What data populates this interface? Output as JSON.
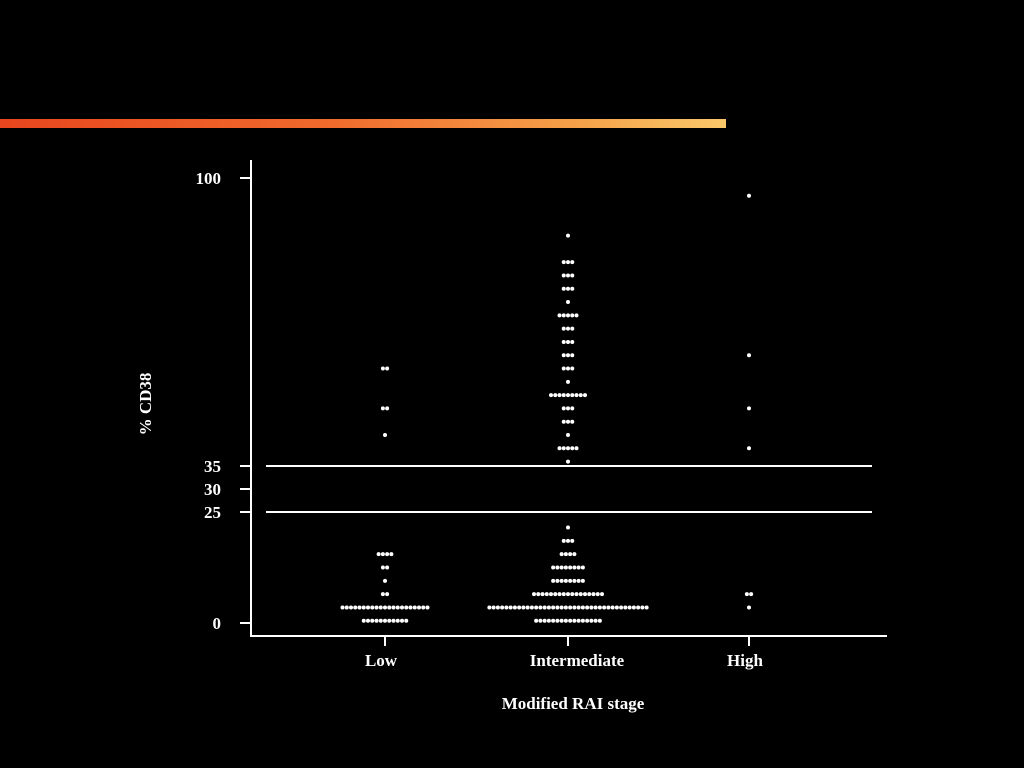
{
  "accent_color": "#f06a2c",
  "chart_data": {
    "type": "scatter",
    "subtype": "dot-plot",
    "xlabel": "Modified RAI stage",
    "ylabel": "% CD38",
    "categories": [
      "Low",
      "Intermediate",
      "High"
    ],
    "yticks": [
      0,
      25,
      30,
      35,
      100
    ],
    "ylim": [
      0,
      100
    ],
    "reference_lines": [
      25,
      35
    ],
    "grid": false,
    "point_color": "#ffffff",
    "series": [
      {
        "category": "Low",
        "values": [
          0.5,
          0.5,
          0.5,
          0.5,
          0.5,
          0.5,
          0.5,
          0.5,
          0.5,
          0.5,
          0.5,
          3.5,
          3.5,
          3.5,
          3.5,
          3.5,
          3.5,
          3.5,
          3.5,
          3.5,
          3.5,
          3.5,
          3.5,
          3.5,
          3.5,
          3.5,
          3.5,
          3.5,
          3.5,
          3.5,
          3.5,
          3.5,
          6.5,
          6.5,
          9.5,
          12.5,
          12.5,
          15.5,
          15.5,
          15.5,
          15.5,
          42,
          48,
          48,
          57,
          57
        ]
      },
      {
        "category": "Intermediate",
        "values": [
          0.5,
          0.5,
          0.5,
          0.5,
          0.5,
          0.5,
          0.5,
          0.5,
          0.5,
          0.5,
          0.5,
          0.5,
          0.5,
          0.5,
          0.5,
          0.5,
          3.5,
          3.5,
          3.5,
          3.5,
          3.5,
          3.5,
          3.5,
          3.5,
          3.5,
          3.5,
          3.5,
          3.5,
          3.5,
          3.5,
          3.5,
          3.5,
          3.5,
          3.5,
          3.5,
          3.5,
          3.5,
          3.5,
          3.5,
          3.5,
          3.5,
          3.5,
          3.5,
          3.5,
          3.5,
          3.5,
          3.5,
          3.5,
          3.5,
          3.5,
          3.5,
          3.5,
          3.5,
          3.5,
          6.5,
          6.5,
          6.5,
          6.5,
          6.5,
          6.5,
          6.5,
          6.5,
          6.5,
          6.5,
          6.5,
          6.5,
          6.5,
          6.5,
          6.5,
          6.5,
          6.5,
          9.5,
          9.5,
          9.5,
          9.5,
          9.5,
          9.5,
          9.5,
          9.5,
          12.5,
          12.5,
          12.5,
          12.5,
          12.5,
          12.5,
          12.5,
          12.5,
          15.5,
          15.5,
          15.5,
          15.5,
          18.5,
          18.5,
          18.5,
          21.5,
          36,
          39,
          39,
          39,
          39,
          39,
          42,
          45,
          45,
          45,
          48,
          48,
          48,
          51,
          51,
          51,
          51,
          51,
          51,
          51,
          51,
          51,
          54,
          57,
          57,
          57,
          60,
          60,
          60,
          63,
          63,
          63,
          66,
          66,
          66,
          69,
          69,
          69,
          69,
          69,
          72,
          75,
          75,
          75,
          78,
          78,
          78,
          81,
          81,
          81,
          87
        ]
      },
      {
        "category": "High",
        "values": [
          3.5,
          6.5,
          6.5,
          39,
          48,
          60,
          96
        ]
      }
    ]
  }
}
